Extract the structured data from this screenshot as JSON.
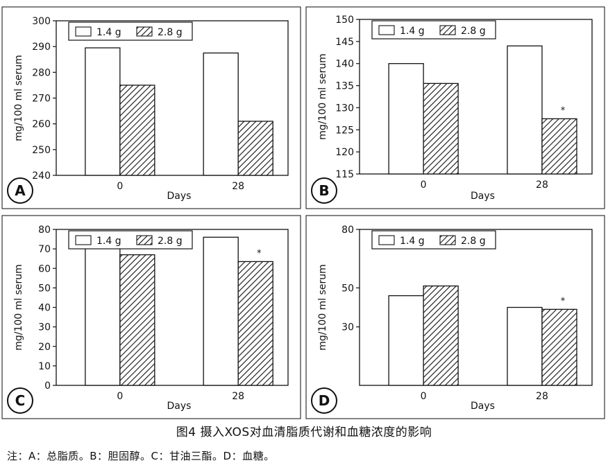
{
  "caption": "图4 摄入XOS对血清脂质代谢和血糖浓度的影响",
  "note": "注：A：总脂质。B：胆固醇。C：甘油三酯。D：血糖。",
  "chart_data": [
    {
      "type": "bar",
      "panel_label": "A",
      "categories": [
        "0",
        "28"
      ],
      "xlabel": "Days",
      "ylabel": "mg/100 ml serum",
      "ylim": [
        240,
        300
      ],
      "yticks": [
        240,
        250,
        260,
        270,
        280,
        290,
        300
      ],
      "legend_position": "top-left",
      "series": [
        {
          "name": "1.4 g",
          "values": [
            289.5,
            287.5
          ],
          "pattern": "plain"
        },
        {
          "name": "2.8 g",
          "values": [
            275,
            261
          ],
          "pattern": "hatch"
        }
      ],
      "annotations": []
    },
    {
      "type": "bar",
      "panel_label": "B",
      "categories": [
        "0",
        "28"
      ],
      "xlabel": "Days",
      "ylabel": "mg/100 ml serum",
      "ylim": [
        115,
        150
      ],
      "yticks": [
        115,
        120,
        125,
        130,
        135,
        140,
        145,
        150
      ],
      "legend_position": "top-left",
      "series": [
        {
          "name": "1.4 g",
          "values": [
            140,
            144
          ],
          "pattern": "plain"
        },
        {
          "name": "2.8 g",
          "values": [
            135.5,
            127.5
          ],
          "pattern": "hatch"
        }
      ],
      "annotations": [
        {
          "text": "*",
          "category": "28",
          "series": "2.8 g"
        }
      ]
    },
    {
      "type": "bar",
      "panel_label": "C",
      "categories": [
        "0",
        "28"
      ],
      "xlabel": "Days",
      "ylabel": "mg/100 ml serum",
      "ylim": [
        0,
        80
      ],
      "yticks": [
        0,
        10,
        20,
        30,
        40,
        50,
        60,
        70,
        80
      ],
      "legend_position": "top-left",
      "series": [
        {
          "name": "1.4 g",
          "values": [
            72.5,
            76
          ],
          "pattern": "plain"
        },
        {
          "name": "2.8 g",
          "values": [
            67,
            63.5
          ],
          "pattern": "hatch"
        }
      ],
      "annotations": [
        {
          "text": "*",
          "category": "28",
          "series": "2.8 g"
        }
      ]
    },
    {
      "type": "bar",
      "panel_label": "D",
      "categories": [
        "0",
        "28"
      ],
      "xlabel": "Days",
      "ylabel": "mg/100 ml serum",
      "ylim": [
        0,
        80
      ],
      "yticks": [
        30,
        50,
        80
      ],
      "legend_position": "top-left",
      "series": [
        {
          "name": "1.4 g",
          "values": [
            46,
            40
          ],
          "pattern": "plain"
        },
        {
          "name": "2.8 g",
          "values": [
            51,
            39
          ],
          "pattern": "hatch"
        }
      ],
      "annotations": [
        {
          "text": "*",
          "category": "28",
          "series": "2.8 g"
        }
      ]
    }
  ]
}
